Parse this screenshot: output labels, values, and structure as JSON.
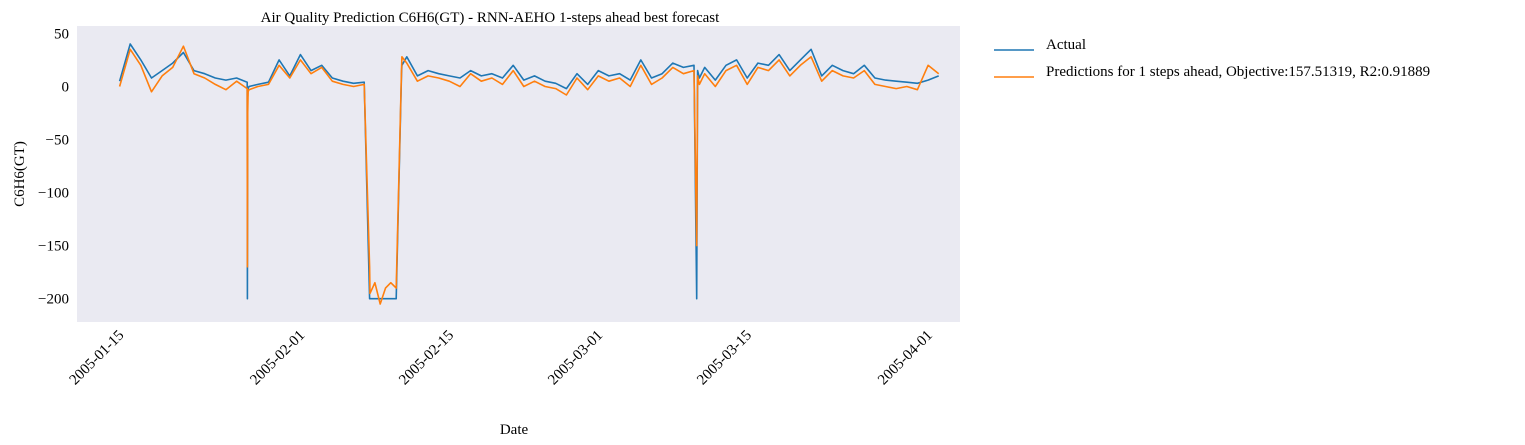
{
  "chart_data": {
    "type": "line",
    "title": "Air Quality Prediction C6H6(GT) - RNN-AEHO 1-steps ahead best forecast",
    "xlabel": "Date",
    "ylabel": "C6H6(GT)",
    "xlim": [
      "2005-01-11",
      "2005-04-04"
    ],
    "ylim": [
      -222,
      57
    ],
    "grid": false,
    "legend": "outside-right",
    "x_ticks": [
      "2005-01-15",
      "2005-02-01",
      "2005-02-15",
      "2005-03-01",
      "2005-03-15",
      "2005-04-01"
    ],
    "y_ticks": [
      50,
      0,
      -50,
      -100,
      -150,
      -200
    ],
    "colors": {
      "plot_bg": "#eaeaf2",
      "actual": "#1f77b4",
      "predicted": "#ff7f0e"
    },
    "series": [
      {
        "name": "Actual",
        "x": [
          "2005-01-15",
          "2005-01-16",
          "2005-01-17",
          "2005-01-18",
          "2005-01-19",
          "2005-01-20",
          "2005-01-21",
          "2005-01-22",
          "2005-01-23",
          "2005-01-24",
          "2005-01-25",
          "2005-01-26",
          "2005-01-27",
          "2005-01-27T00:20",
          "2005-01-27T01:00",
          "2005-01-27T02:00",
          "2005-01-27T04:00",
          "2005-01-28",
          "2005-01-29",
          "2005-01-30",
          "2005-01-31",
          "2005-02-01",
          "2005-02-02",
          "2005-02-03",
          "2005-02-04",
          "2005-02-05",
          "2005-02-06",
          "2005-02-07",
          "2005-02-07T12:00",
          "2005-02-07T13:00",
          "2005-02-08",
          "2005-02-09",
          "2005-02-10",
          "2005-02-10T12:00",
          "2005-02-10T13:00",
          "2005-02-11",
          "2005-02-12",
          "2005-02-13",
          "2005-02-14",
          "2005-02-15",
          "2005-02-16",
          "2005-02-17",
          "2005-02-18",
          "2005-02-19",
          "2005-02-20",
          "2005-02-21",
          "2005-02-22",
          "2005-02-23",
          "2005-02-24",
          "2005-02-25",
          "2005-02-26",
          "2005-02-27",
          "2005-02-28",
          "2005-03-01",
          "2005-03-02",
          "2005-03-03",
          "2005-03-04",
          "2005-03-05",
          "2005-03-06",
          "2005-03-07",
          "2005-03-08",
          "2005-03-09",
          "2005-03-10",
          "2005-03-10T06:00",
          "2005-03-10T08:00",
          "2005-03-10T12:00",
          "2005-03-11",
          "2005-03-12",
          "2005-03-13",
          "2005-03-14",
          "2005-03-15",
          "2005-03-16",
          "2005-03-17",
          "2005-03-18",
          "2005-03-19",
          "2005-03-20",
          "2005-03-21",
          "2005-03-22",
          "2005-03-23",
          "2005-03-24",
          "2005-03-25",
          "2005-03-26",
          "2005-03-27",
          "2005-03-28",
          "2005-03-29",
          "2005-03-30",
          "2005-03-31",
          "2005-04-01",
          "2005-04-02"
        ],
        "y": [
          5,
          40,
          25,
          8,
          15,
          22,
          32,
          15,
          12,
          8,
          6,
          8,
          4,
          -200,
          -10,
          -2,
          0,
          2,
          4,
          25,
          10,
          30,
          15,
          20,
          8,
          5,
          3,
          4,
          -200,
          -200,
          -200,
          -200,
          -200,
          12,
          20,
          28,
          10,
          15,
          12,
          10,
          8,
          15,
          10,
          12,
          8,
          20,
          6,
          10,
          5,
          3,
          -2,
          12,
          2,
          15,
          10,
          12,
          6,
          25,
          8,
          12,
          22,
          18,
          20,
          -200,
          15,
          8,
          18,
          6,
          20,
          25,
          8,
          22,
          20,
          30,
          15,
          25,
          35,
          10,
          20,
          15,
          12,
          20,
          8,
          6,
          5,
          4,
          3,
          6,
          10
        ]
      },
      {
        "name": "Predictions for 1 steps ahead, Objective:157.51319, R2:0.91889",
        "x": [
          "2005-01-15",
          "2005-01-16",
          "2005-01-17",
          "2005-01-18",
          "2005-01-19",
          "2005-01-20",
          "2005-01-21",
          "2005-01-22",
          "2005-01-23",
          "2005-01-24",
          "2005-01-25",
          "2005-01-26",
          "2005-01-27",
          "2005-01-27T00:20",
          "2005-01-27T01:00",
          "2005-01-27T02:00",
          "2005-01-27T04:00",
          "2005-01-28",
          "2005-01-29",
          "2005-01-30",
          "2005-01-31",
          "2005-02-01",
          "2005-02-02",
          "2005-02-03",
          "2005-02-04",
          "2005-02-05",
          "2005-02-06",
          "2005-02-07",
          "2005-02-07T12:00",
          "2005-02-07T13:00",
          "2005-02-08",
          "2005-02-08T12:00",
          "2005-02-09",
          "2005-02-09T12:00",
          "2005-02-10",
          "2005-02-10T12:00",
          "2005-02-10T13:00",
          "2005-02-11",
          "2005-02-12",
          "2005-02-13",
          "2005-02-14",
          "2005-02-15",
          "2005-02-16",
          "2005-02-17",
          "2005-02-18",
          "2005-02-19",
          "2005-02-20",
          "2005-02-21",
          "2005-02-22",
          "2005-02-23",
          "2005-02-24",
          "2005-02-25",
          "2005-02-26",
          "2005-02-27",
          "2005-02-28",
          "2005-03-01",
          "2005-03-02",
          "2005-03-03",
          "2005-03-04",
          "2005-03-05",
          "2005-03-06",
          "2005-03-07",
          "2005-03-08",
          "2005-03-09",
          "2005-03-10",
          "2005-03-10T06:00",
          "2005-03-10T08:00",
          "2005-03-10T12:00",
          "2005-03-11",
          "2005-03-12",
          "2005-03-13",
          "2005-03-14",
          "2005-03-15",
          "2005-03-16",
          "2005-03-17",
          "2005-03-18",
          "2005-03-19",
          "2005-03-20",
          "2005-03-21",
          "2005-03-22",
          "2005-03-23",
          "2005-03-24",
          "2005-03-25",
          "2005-03-26",
          "2005-03-27",
          "2005-03-28",
          "2005-03-29",
          "2005-03-30",
          "2005-03-31",
          "2005-04-01",
          "2005-04-02"
        ],
        "y": [
          0,
          35,
          20,
          -5,
          10,
          18,
          38,
          12,
          8,
          2,
          -3,
          5,
          -2,
          -170,
          -25,
          -5,
          -3,
          0,
          2,
          20,
          8,
          25,
          12,
          18,
          5,
          2,
          0,
          2,
          -170,
          -195,
          -185,
          -205,
          -190,
          -185,
          -190,
          15,
          28,
          22,
          5,
          10,
          8,
          5,
          0,
          12,
          5,
          8,
          2,
          15,
          0,
          5,
          0,
          -2,
          -8,
          8,
          -3,
          10,
          5,
          8,
          0,
          20,
          2,
          8,
          18,
          12,
          15,
          -150,
          10,
          2,
          12,
          0,
          15,
          20,
          2,
          18,
          15,
          25,
          10,
          20,
          28,
          5,
          15,
          10,
          8,
          15,
          2,
          0,
          -2,
          0,
          -3,
          20,
          12
        ]
      }
    ]
  }
}
